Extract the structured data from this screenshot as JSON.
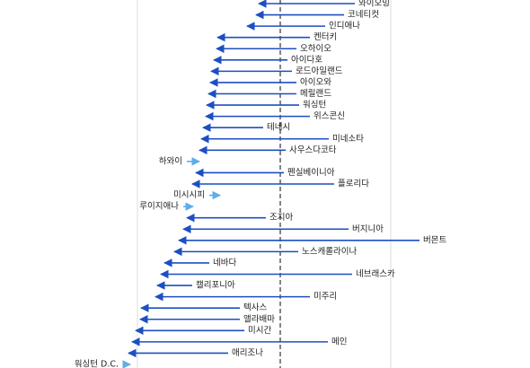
{
  "chart_data": {
    "type": "arrow",
    "categories": [
      "와이오밍",
      "코네티컷",
      "인디애나",
      "켄터키",
      "오하이오",
      "아이다호",
      "로드아일랜드",
      "아이오와",
      "메릴랜드",
      "워싱턴",
      "위스콘신",
      "테네시",
      "미네소타",
      "사우스다코타",
      "하와이",
      "펜실베이니아",
      "플로리다",
      "미시시피",
      "루이지애나",
      "조지아",
      "버지니아",
      "버몬트",
      "노스캐롤라이나",
      "네바다",
      "네브래스카",
      "캘리포니아",
      "미주리",
      "텍사스",
      "앨라배마",
      "미시간",
      "메인",
      "애리조나",
      "워싱턴 D.C."
    ],
    "series": [
      {
        "name": "start",
        "values": [
          395,
          383,
          362,
          345,
          330,
          320,
          325,
          330,
          330,
          333,
          345,
          293,
          366,
          318,
          208,
          316,
          372,
          233,
          204,
          296,
          388,
          467,
          332,
          233,
          392,
          214,
          345,
          267,
          267,
          272,
          365,
          254,
          137
        ]
      },
      {
        "name": "end",
        "values": [
          288,
          285,
          275,
          242,
          241,
          238,
          235,
          234,
          232,
          230,
          229,
          226,
          224,
          222,
          222,
          218,
          214,
          245,
          215,
          208,
          204,
          199,
          194,
          183,
          179,
          175,
          173,
          157,
          156,
          151,
          147,
          143,
          145
        ]
      }
    ],
    "colors": {
      "decrease": "#1d4fc2",
      "increase": "#5eaee8"
    },
    "xlim": [
      0,
      590
    ],
    "grid_lines": [
      153,
      435
    ],
    "reference_line": 312
  }
}
